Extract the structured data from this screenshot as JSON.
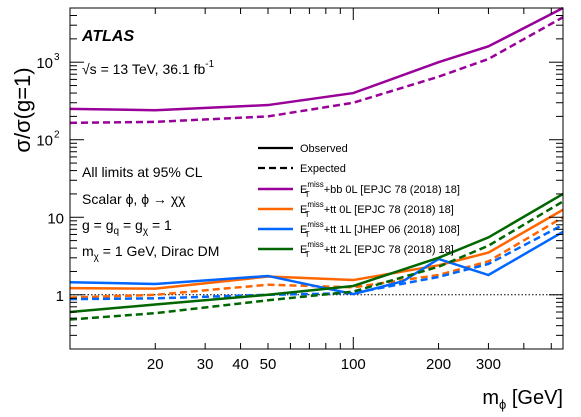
{
  "chart_data": {
    "type": "line",
    "xscale": "log",
    "yscale": "log",
    "xlim": [
      10,
      550
    ],
    "ylim": [
      0.2,
      5000
    ],
    "xlabel": "m",
    "xlabel_sub": "ϕ",
    "xlabel_unit": " [GeV]",
    "ylabel": "σ/σ(g=1)",
    "x_tick_labels": [
      {
        "value": 20,
        "label": "20"
      },
      {
        "value": 30,
        "label": "30"
      },
      {
        "value": 40,
        "label": "40"
      },
      {
        "value": 50,
        "label": "50"
      },
      {
        "value": 100,
        "label": "100"
      },
      {
        "value": 200,
        "label": "200"
      },
      {
        "value": 300,
        "label": "300"
      }
    ],
    "y_tick_labels": [
      {
        "value": 1,
        "label": "1"
      },
      {
        "value": 10,
        "label": "10"
      },
      {
        "value": 100,
        "label": "10",
        "exp": "2"
      },
      {
        "value": 1000,
        "label": "10",
        "exp": "3"
      }
    ],
    "reference_line": 1,
    "annotations": {
      "experiment": "ATLAS",
      "energy_prefix": "√s = 13 TeV, 36.1 fb",
      "energy_exp": "-1",
      "cl": "All limits at 95% CL",
      "model": "Scalar ϕ, ϕ → χχ",
      "couplings": "g = g",
      "couplings_q": "q",
      "couplings_mid": " = g",
      "couplings_chi": "χ",
      "couplings_end": " = 1",
      "mass_prefix": "m",
      "mass_sub": "χ",
      "mass_suffix": " = 1 GeV, Dirac DM"
    },
    "legend": {
      "observed": "Observed",
      "expected": "Expected"
    },
    "series": [
      {
        "name": "+bb 0L [EPJC 78 (2018) 18]",
        "color": "#990099",
        "observed": {
          "x": [
            10,
            20,
            50,
            100,
            200,
            300,
            550
          ],
          "y": [
            250,
            240,
            280,
            400,
            1000,
            1600,
            5000
          ]
        },
        "expected": {
          "x": [
            10,
            20,
            50,
            100,
            200,
            300,
            550
          ],
          "y": [
            165,
            170,
            200,
            300,
            650,
            1100,
            3800
          ]
        }
      },
      {
        "name": "+tt 0L [EPJC 78 (2018) 18]",
        "color": "#ff6600",
        "observed": {
          "x": [
            10,
            20,
            50,
            100,
            200,
            300,
            550
          ],
          "y": [
            1.22,
            1.2,
            1.72,
            1.55,
            2.4,
            3.5,
            12.5
          ]
        },
        "expected": {
          "x": [
            10,
            20,
            50,
            100,
            200,
            300,
            550
          ],
          "y": [
            0.92,
            1.0,
            1.35,
            1.25,
            1.8,
            2.7,
            10.0
          ]
        }
      },
      {
        "name": "+tt 1L [JHEP 06 (2018) 108]",
        "color": "#0066ff",
        "observed": {
          "x": [
            10,
            20,
            50,
            100,
            150,
            200,
            300,
            550
          ],
          "y": [
            1.45,
            1.38,
            1.75,
            1.02,
            1.5,
            2.9,
            1.8,
            6.5
          ]
        },
        "expected": {
          "x": [
            10,
            20,
            50,
            100,
            200,
            300,
            550
          ],
          "y": [
            0.88,
            0.9,
            1.0,
            1.05,
            1.7,
            2.5,
            8.0
          ]
        }
      },
      {
        "name": "+tt 2L [EPJC 78 (2018) 18]",
        "color": "#006600",
        "observed": {
          "x": [
            10,
            20,
            50,
            100,
            200,
            300,
            550
          ],
          "y": [
            0.6,
            0.75,
            1.0,
            1.3,
            3.0,
            5.5,
            20.0
          ]
        },
        "expected": {
          "x": [
            10,
            20,
            50,
            100,
            200,
            300,
            550
          ],
          "y": [
            0.48,
            0.58,
            0.85,
            1.1,
            2.3,
            4.3,
            16.0
          ]
        }
      }
    ]
  }
}
